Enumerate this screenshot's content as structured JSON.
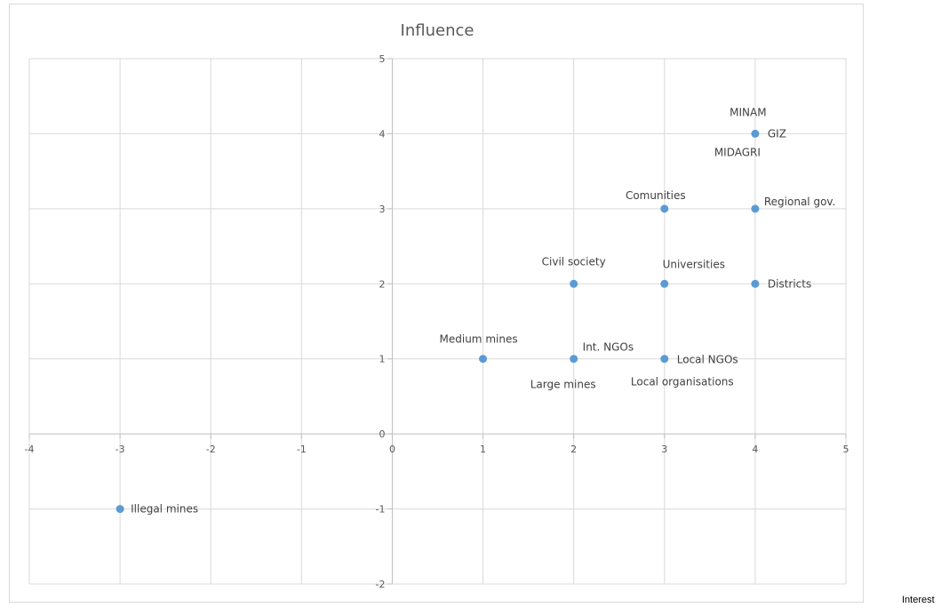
{
  "chart_data": {
    "type": "scatter",
    "title": "Influence",
    "xlabel": "Interest",
    "ylabel": "",
    "xlim": [
      -4,
      5
    ],
    "ylim": [
      -2,
      5
    ],
    "x_ticks": [
      -4,
      -3,
      -2,
      -1,
      0,
      1,
      2,
      3,
      4,
      5
    ],
    "y_ticks": [
      -2,
      -1,
      0,
      1,
      2,
      3,
      4,
      5
    ],
    "grid": true,
    "marker_color": "#5b9bd5",
    "points": [
      {
        "x": 4,
        "y": 4,
        "labels": [
          "MINAM",
          "GIZ",
          "MIDAGRI"
        ]
      },
      {
        "x": 3,
        "y": 3,
        "labels": [
          "Comunities"
        ]
      },
      {
        "x": 4,
        "y": 3,
        "labels": [
          "Regional gov."
        ]
      },
      {
        "x": 2,
        "y": 2,
        "labels": [
          "Civil society"
        ]
      },
      {
        "x": 3,
        "y": 2,
        "labels": [
          "Universities"
        ]
      },
      {
        "x": 4,
        "y": 2,
        "labels": [
          "Districts"
        ]
      },
      {
        "x": 1,
        "y": 1,
        "labels": [
          "Medium mines"
        ]
      },
      {
        "x": 2,
        "y": 1,
        "labels": [
          "Int. NGOs",
          "Large mines"
        ]
      },
      {
        "x": 3,
        "y": 1,
        "labels": [
          "Local NGOs",
          "Local organisations"
        ]
      },
      {
        "x": -3,
        "y": -1,
        "labels": [
          "Illegal mines"
        ]
      }
    ]
  }
}
